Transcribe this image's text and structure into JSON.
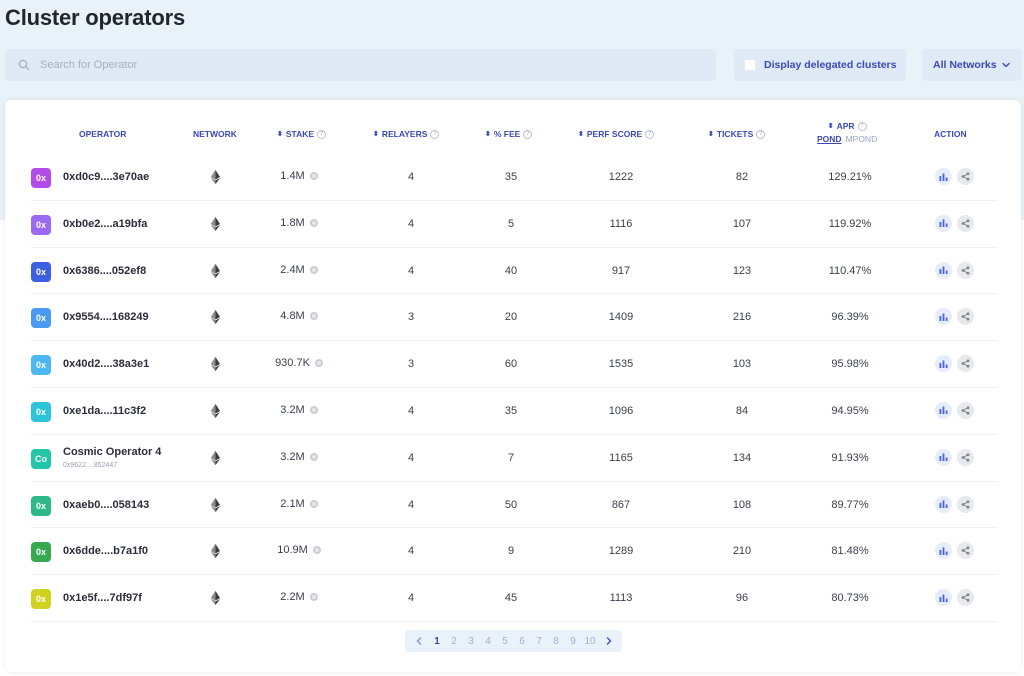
{
  "page": {
    "title": "Cluster operators"
  },
  "filters": {
    "search_placeholder": "Search for Operator",
    "delegated_label": "Display delegated clusters",
    "network_label": "All Networks"
  },
  "table": {
    "headers": {
      "operator": "OPERATOR",
      "network": "NETWORK",
      "stake": "STAKE",
      "relayers": "RELAYERS",
      "fee": "% FEE",
      "perf": "PERF SCORE",
      "tickets": "TICKETS",
      "apr": "APR",
      "apr_pond": "POND",
      "apr_mpond": "MPond",
      "action": "ACTION"
    },
    "rows": [
      {
        "badge": "0x",
        "badge_color": "#b24be8",
        "name": "0xd0c9....3e70ae",
        "sub": "",
        "network_icon": "ethereum-icon",
        "stake": "1.4M",
        "relayers": "4",
        "fee": "35",
        "perf": "1222",
        "tickets": "82",
        "apr": "129.21%"
      },
      {
        "badge": "0x",
        "badge_color": "#9a6af2",
        "name": "0xb0e2....a19bfa",
        "sub": "",
        "network_icon": "ethereum-icon",
        "stake": "1.8M",
        "relayers": "4",
        "fee": "5",
        "perf": "1116",
        "tickets": "107",
        "apr": "119.92%"
      },
      {
        "badge": "0x",
        "badge_color": "#3e5fe0",
        "name": "0x6386....052ef8",
        "sub": "",
        "network_icon": "ethereum-icon",
        "stake": "2.4M",
        "relayers": "4",
        "fee": "40",
        "perf": "917",
        "tickets": "123",
        "apr": "110.47%"
      },
      {
        "badge": "0x",
        "badge_color": "#4a9af2",
        "name": "0x9554....168249",
        "sub": "",
        "network_icon": "ethereum-icon",
        "stake": "4.8M",
        "relayers": "3",
        "fee": "20",
        "perf": "1409",
        "tickets": "216",
        "apr": "96.39%"
      },
      {
        "badge": "0x",
        "badge_color": "#4db7f2",
        "name": "0x40d2....38a3e1",
        "sub": "",
        "network_icon": "ethereum-icon",
        "stake": "930.7K",
        "relayers": "3",
        "fee": "60",
        "perf": "1535",
        "tickets": "103",
        "apr": "95.98%"
      },
      {
        "badge": "0x",
        "badge_color": "#2cc4d8",
        "name": "0xe1da....11c3f2",
        "sub": "",
        "network_icon": "ethereum-icon",
        "stake": "3.2M",
        "relayers": "4",
        "fee": "35",
        "perf": "1096",
        "tickets": "84",
        "apr": "94.95%"
      },
      {
        "badge": "Co",
        "badge_color": "#23c6a8",
        "name": "Cosmic Operator 4",
        "sub": "0x9622....852447",
        "network_icon": "ethereum-icon",
        "stake": "3.2M",
        "relayers": "4",
        "fee": "7",
        "perf": "1165",
        "tickets": "134",
        "apr": "91.93%"
      },
      {
        "badge": "0x",
        "badge_color": "#2db888",
        "name": "0xaeb0....058143",
        "sub": "",
        "network_icon": "ethereum-icon",
        "stake": "2.1M",
        "relayers": "4",
        "fee": "50",
        "perf": "867",
        "tickets": "108",
        "apr": "89.77%"
      },
      {
        "badge": "0x",
        "badge_color": "#39a94f",
        "name": "0x6dde....b7a1f0",
        "sub": "",
        "network_icon": "ethereum-icon",
        "stake": "10.9M",
        "relayers": "4",
        "fee": "9",
        "perf": "1289",
        "tickets": "210",
        "apr": "81.48%"
      },
      {
        "badge": "0x",
        "badge_color": "#cfd21e",
        "name": "0x1e5f....7df97f",
        "sub": "",
        "network_icon": "ethereum-icon",
        "stake": "2.2M",
        "relayers": "4",
        "fee": "45",
        "perf": "1113",
        "tickets": "96",
        "apr": "80.73%"
      }
    ]
  },
  "pagination": {
    "pages": [
      "1",
      "2",
      "3",
      "4",
      "5",
      "6",
      "7",
      "8",
      "9",
      "10"
    ],
    "current": "1"
  }
}
